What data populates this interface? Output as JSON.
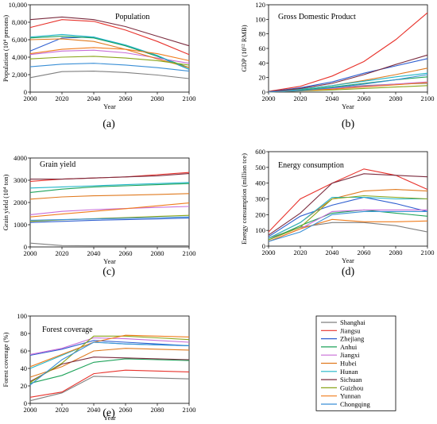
{
  "regions": [
    "Shanghai",
    "Jiangsu",
    "Zhejiang",
    "Anhui",
    "Jiangxi",
    "Hubei",
    "Hunan",
    "Sichuan",
    "Guizhou",
    "Yunnan",
    "Chongqing"
  ],
  "colors": [
    "#7f7f7f",
    "#e8332c",
    "#2f5fd0",
    "#1ea35a",
    "#c86dd7",
    "#e07a1f",
    "#21b5c8",
    "#7b2c3f",
    "#8aa51a",
    "#f07c1c",
    "#3a8fd6"
  ],
  "chart_data": [
    {
      "id": "a",
      "type": "line",
      "panel_label": "(a)",
      "title": "Population",
      "xlabel": "Year",
      "ylabel": "Population (10⁴ persons)",
      "xlim": [
        2000,
        2100
      ],
      "ylim": [
        0,
        10000
      ],
      "xticks": [
        2000,
        2020,
        2040,
        2060,
        2080,
        2100
      ],
      "yticks": [
        0,
        2000,
        4000,
        6000,
        8000,
        10000
      ],
      "ytick_labels": [
        "0",
        "2,000",
        "4,000",
        "6,000",
        "8,000",
        "10,000"
      ],
      "x": [
        2000,
        2020,
        2040,
        2060,
        2080,
        2100
      ],
      "series": [
        {
          "name": "Shanghai",
          "values": [
            1650,
            2350,
            2400,
            2250,
            1950,
            1550
          ]
        },
        {
          "name": "Jiangsu",
          "values": [
            7400,
            8300,
            8100,
            7100,
            5800,
            4300
          ]
        },
        {
          "name": "Zhejiang",
          "values": [
            4700,
            6200,
            6300,
            5300,
            4100,
            2600
          ]
        },
        {
          "name": "Anhui",
          "values": [
            6200,
            6400,
            6200,
            5300,
            4100,
            2800
          ]
        },
        {
          "name": "Jiangxi",
          "values": [
            4300,
            4700,
            4800,
            4500,
            3900,
            3300
          ]
        },
        {
          "name": "Hubei",
          "values": [
            6000,
            6100,
            5800,
            4900,
            3800,
            2800
          ]
        },
        {
          "name": "Hunan",
          "values": [
            6300,
            6600,
            6300,
            5400,
            4200,
            2600
          ]
        },
        {
          "name": "Sichuan",
          "values": [
            8300,
            8600,
            8300,
            7500,
            6400,
            5300
          ]
        },
        {
          "name": "Guizhou",
          "values": [
            3800,
            4000,
            4100,
            3900,
            3600,
            3100
          ]
        },
        {
          "name": "Yunnan",
          "values": [
            4400,
            4900,
            5100,
            4900,
            4400,
            3600
          ]
        },
        {
          "name": "Chongqing",
          "values": [
            2900,
            3200,
            3300,
            3100,
            2800,
            2400
          ]
        }
      ]
    },
    {
      "id": "b",
      "type": "line",
      "panel_label": "(b)",
      "title": "Gross Domestic Product",
      "xlabel": "Year",
      "ylabel": "GDP (10¹² RMB)",
      "xlim": [
        2000,
        2100
      ],
      "ylim": [
        0,
        120
      ],
      "xticks": [
        2000,
        2020,
        2040,
        2060,
        2080,
        2100
      ],
      "yticks": [
        0,
        20,
        40,
        60,
        80,
        100,
        120
      ],
      "ytick_labels": [
        "0",
        "20",
        "40",
        "60",
        "80",
        "100",
        "120"
      ],
      "x": [
        2000,
        2020,
        2040,
        2060,
        2080,
        2100
      ],
      "series": [
        {
          "name": "Shanghai",
          "values": [
            0.5,
            3,
            6,
            9,
            11,
            12
          ]
        },
        {
          "name": "Jiangsu",
          "values": [
            1,
            8,
            22,
            42,
            72,
            109
          ]
        },
        {
          "name": "Zhejiang",
          "values": [
            0.7,
            6,
            14,
            26,
            36,
            46
          ]
        },
        {
          "name": "Anhui",
          "values": [
            0.3,
            3,
            7,
            12,
            17,
            21
          ]
        },
        {
          "name": "Jiangxi",
          "values": [
            0.2,
            2,
            5,
            8,
            11,
            14
          ]
        },
        {
          "name": "Hubei",
          "values": [
            0.4,
            4,
            9,
            16,
            24,
            33
          ]
        },
        {
          "name": "Hunan",
          "values": [
            0.4,
            4,
            9,
            15,
            21,
            26
          ]
        },
        {
          "name": "Sichuan",
          "values": [
            0.5,
            5,
            12,
            24,
            38,
            51
          ]
        },
        {
          "name": "Guizhou",
          "values": [
            0.1,
            1.5,
            3,
            5,
            7,
            9
          ]
        },
        {
          "name": "Yunnan",
          "values": [
            0.2,
            2,
            4,
            7,
            10,
            13
          ]
        },
        {
          "name": "Chongqing",
          "values": [
            0.2,
            2,
            6,
            11,
            17,
            24
          ]
        }
      ]
    },
    {
      "id": "c",
      "type": "line",
      "panel_label": "(c)",
      "title": "Grain yield",
      "xlabel": "Year",
      "ylabel": "Grain yield (10⁴ ton)",
      "xlim": [
        2000,
        2100
      ],
      "ylim": [
        0,
        4000
      ],
      "xticks": [
        2000,
        2020,
        2040,
        2060,
        2080,
        2100
      ],
      "yticks": [
        0,
        1000,
        2000,
        3000,
        4000
      ],
      "ytick_labels": [
        "0",
        "1000",
        "2000",
        "3000",
        "4000"
      ],
      "x": [
        2000,
        2020,
        2040,
        2060,
        2080,
        2100
      ],
      "series": [
        {
          "name": "Shanghai",
          "values": [
            170,
            60,
            50,
            50,
            50,
            50
          ]
        },
        {
          "name": "Jiangsu",
          "values": [
            2950,
            3050,
            3100,
            3150,
            3250,
            3350
          ]
        },
        {
          "name": "Zhejiang",
          "values": [
            1100,
            1150,
            1200,
            1230,
            1260,
            1300
          ]
        },
        {
          "name": "Anhui",
          "values": [
            2450,
            2600,
            2700,
            2750,
            2800,
            2850
          ]
        },
        {
          "name": "Jiangxi",
          "values": [
            1450,
            1600,
            1680,
            1730,
            1780,
            1820
          ]
        },
        {
          "name": "Hubei",
          "values": [
            2150,
            2250,
            2300,
            2330,
            2360,
            2400
          ]
        },
        {
          "name": "Hunan",
          "values": [
            2650,
            2700,
            2750,
            2800,
            2850,
            2900
          ]
        },
        {
          "name": "Sichuan",
          "values": [
            3050,
            3050,
            3100,
            3150,
            3200,
            3300
          ]
        },
        {
          "name": "Guizhou",
          "values": [
            1150,
            1220,
            1270,
            1320,
            1370,
            1420
          ]
        },
        {
          "name": "Yunnan",
          "values": [
            1350,
            1480,
            1600,
            1720,
            1850,
            1980
          ]
        },
        {
          "name": "Chongqing",
          "values": [
            1200,
            1230,
            1260,
            1290,
            1320,
            1350
          ]
        }
      ]
    },
    {
      "id": "d",
      "type": "line",
      "panel_label": "(d)",
      "title": "Energy consumption",
      "xlabel": "Year",
      "ylabel": "Energy consumption (million tce)",
      "xlim": [
        2000,
        2100
      ],
      "ylim": [
        0,
        600
      ],
      "xticks": [
        2000,
        2020,
        2040,
        2060,
        2080,
        2100
      ],
      "yticks": [
        0,
        100,
        200,
        300,
        400,
        500,
        600
      ],
      "ytick_labels": [
        "0",
        "100",
        "200",
        "300",
        "400",
        "500",
        "600"
      ],
      "x": [
        2000,
        2020,
        2040,
        2060,
        2080,
        2100
      ],
      "series": [
        {
          "name": "Shanghai",
          "values": [
            50,
            120,
            150,
            150,
            130,
            90
          ]
        },
        {
          "name": "Jiangsu",
          "values": [
            90,
            300,
            400,
            490,
            450,
            360
          ]
        },
        {
          "name": "Zhejiang",
          "values": [
            60,
            190,
            260,
            310,
            270,
            220
          ]
        },
        {
          "name": "Anhui",
          "values": [
            40,
            130,
            210,
            230,
            210,
            190
          ]
        },
        {
          "name": "Jiangxi",
          "values": [
            30,
            110,
            220,
            230,
            230,
            230
          ]
        },
        {
          "name": "Hubei",
          "values": [
            50,
            150,
            300,
            350,
            360,
            350
          ]
        },
        {
          "name": "Hunan",
          "values": [
            50,
            150,
            310,
            310,
            300,
            300
          ]
        },
        {
          "name": "Sichuan",
          "values": [
            70,
            210,
            400,
            460,
            450,
            440
          ]
        },
        {
          "name": "Guizhou",
          "values": [
            40,
            120,
            300,
            320,
            310,
            300
          ]
        },
        {
          "name": "Yunnan",
          "values": [
            30,
            110,
            170,
            155,
            155,
            160
          ]
        },
        {
          "name": "Chongqing",
          "values": [
            30,
            90,
            200,
            220,
            220,
            220
          ]
        }
      ]
    },
    {
      "id": "e",
      "type": "line",
      "panel_label": "(e)",
      "title": "Forest coverage",
      "xlabel": "Year",
      "ylabel": "Forest coverage (%)",
      "xlim": [
        2000,
        2100
      ],
      "ylim": [
        0,
        100
      ],
      "xticks": [
        2000,
        2020,
        2040,
        2060,
        2080,
        2100
      ],
      "yticks": [
        0,
        20,
        40,
        60,
        80,
        100
      ],
      "ytick_labels": [
        "0",
        "20",
        "40",
        "60",
        "80",
        "100"
      ],
      "x": [
        2000,
        2020,
        2040,
        2060,
        2080,
        2100
      ],
      "series": [
        {
          "name": "Shanghai",
          "values": [
            3,
            12,
            31,
            30,
            29,
            28
          ]
        },
        {
          "name": "Jiangsu",
          "values": [
            7,
            13,
            34,
            38,
            37,
            36
          ]
        },
        {
          "name": "Zhejiang",
          "values": [
            55,
            62,
            72,
            70,
            68,
            66
          ]
        },
        {
          "name": "Anhui",
          "values": [
            23,
            32,
            47,
            51,
            50,
            49
          ]
        },
        {
          "name": "Jiangxi",
          "values": [
            56,
            63,
            75,
            74,
            72,
            70
          ]
        },
        {
          "name": "Hubei",
          "values": [
            30,
            42,
            60,
            63,
            62,
            61
          ]
        },
        {
          "name": "Hunan",
          "values": [
            40,
            55,
            70,
            68,
            67,
            66
          ]
        },
        {
          "name": "Sichuan",
          "values": [
            25,
            45,
            53,
            52,
            51,
            50
          ]
        },
        {
          "name": "Guizhou",
          "values": [
            24,
            46,
            77,
            77,
            75,
            73
          ]
        },
        {
          "name": "Yunnan",
          "values": [
            42,
            56,
            70,
            78,
            77,
            76
          ]
        },
        {
          "name": "Chongqing",
          "values": [
            21,
            50,
            70,
            68,
            67,
            66
          ]
        }
      ]
    }
  ]
}
